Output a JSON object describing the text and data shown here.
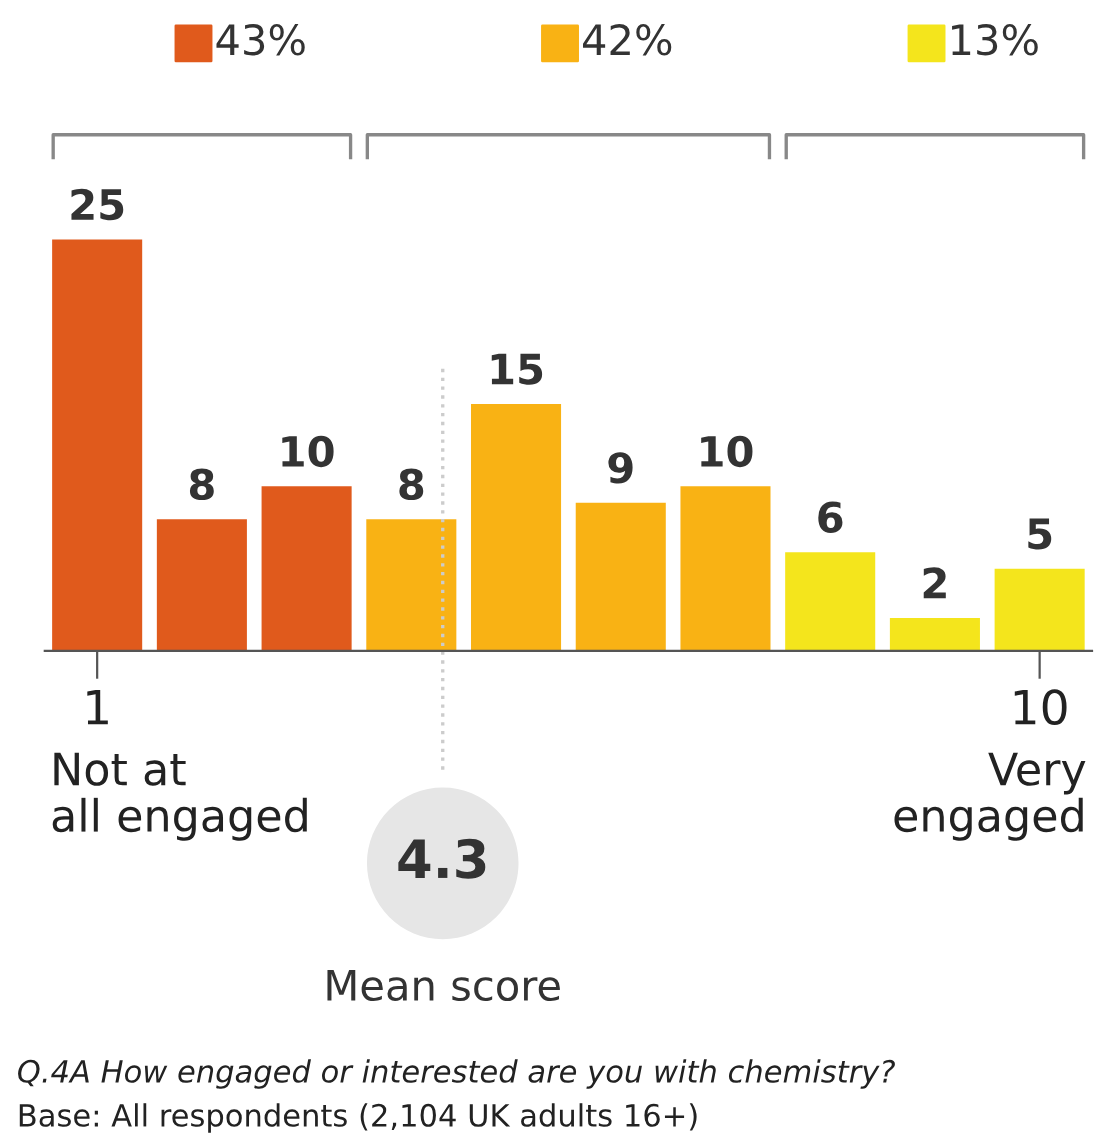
{
  "chart_data": {
    "type": "bar",
    "x": [
      1,
      2,
      3,
      4,
      5,
      6,
      7,
      8,
      9,
      10
    ],
    "values": [
      25,
      8,
      10,
      8,
      15,
      9,
      10,
      6,
      2,
      5
    ],
    "colors": [
      "#e05a1c",
      "#e05a1c",
      "#e05a1c",
      "#f9b214",
      "#f9b214",
      "#f9b214",
      "#f9b214",
      "#f4e51c",
      "#f4e51c",
      "#f4e51c"
    ],
    "xlim": [
      0.5,
      10.5
    ],
    "xticks": [
      1,
      10
    ],
    "data_labels": true,
    "tick_labels": "x",
    "grid": false,
    "legend": false,
    "ref_lines": [
      {
        "axis": "x",
        "value": 4.3,
        "label": "4.3",
        "color": "#cccccc",
        "line_style": "dotted"
      }
    ],
    "annotations": [
      "43%",
      "42%",
      "13%",
      "Not at\nall engaged",
      "Very\nengaged",
      "Q.4A How engaged or interested are you with chemistry?",
      "Base: All respondents (2,104 UK adults 16+)",
      "Mean score"
    ]
  }
}
